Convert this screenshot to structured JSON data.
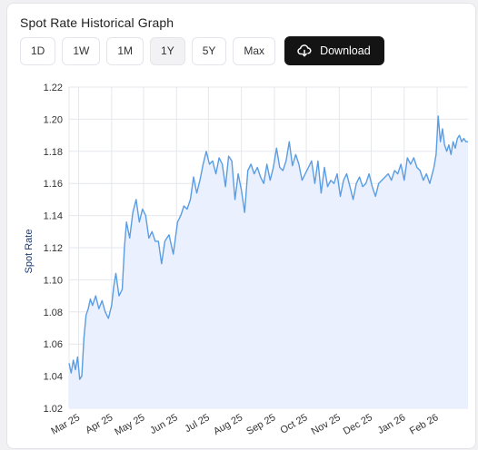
{
  "header": {
    "title": "Spot Rate Historical Graph"
  },
  "toolbar": {
    "ranges": [
      "1D",
      "1W",
      "1M",
      "1Y",
      "5Y",
      "Max"
    ],
    "active_range": "1Y",
    "download_label": "Download"
  },
  "colors": {
    "line": "#5a9de3",
    "fill": "#eaf0fd",
    "grid": "#e6e7ec",
    "button_dark": "#141414"
  },
  "chart_data": {
    "type": "area",
    "title": "",
    "xlabel": "",
    "ylabel": "Spot Rate",
    "ylim": [
      1.02,
      1.22
    ],
    "yticks": [
      "1.22",
      "1.20",
      "1.18",
      "1.16",
      "1.14",
      "1.12",
      "1.10",
      "1.08",
      "1.06",
      "1.04",
      "1.02"
    ],
    "ytick_values": [
      1.22,
      1.2,
      1.18,
      1.16,
      1.14,
      1.12,
      1.1,
      1.08,
      1.06,
      1.04,
      1.02
    ],
    "xticks": [
      "Mar 25",
      "Apr 25",
      "May 25",
      "Jun 25",
      "Jul 25",
      "Aug 25",
      "Sep 25",
      "Oct 25",
      "Nov 25",
      "Dec 25",
      "Jan 26",
      "Feb 26"
    ],
    "xtick_dates": [
      "2025-03-01",
      "2025-04-01",
      "2025-05-01",
      "2025-06-01",
      "2025-07-01",
      "2025-08-01",
      "2025-09-01",
      "2025-10-01",
      "2025-11-01",
      "2025-12-01",
      "2026-01-01",
      "2026-02-01"
    ],
    "xlim": [
      "2025-02-20",
      "2026-03-02"
    ],
    "grid": true,
    "legend": "none",
    "series": [
      {
        "x": [
          "2025-02-20",
          "2025-02-22",
          "2025-02-24",
          "2025-02-26",
          "2025-02-28",
          "2025-03-02",
          "2025-03-04",
          "2025-03-06",
          "2025-03-08",
          "2025-03-10",
          "2025-03-12",
          "2025-03-14",
          "2025-03-17",
          "2025-03-20",
          "2025-03-23",
          "2025-03-26",
          "2025-03-29",
          "2025-04-01",
          "2025-04-03",
          "2025-04-05",
          "2025-04-08",
          "2025-04-11",
          "2025-04-13",
          "2025-04-15",
          "2025-04-18",
          "2025-04-21",
          "2025-04-24",
          "2025-04-27",
          "2025-04-30",
          "2025-05-03",
          "2025-05-06",
          "2025-05-09",
          "2025-05-12",
          "2025-05-15",
          "2025-05-18",
          "2025-05-21",
          "2025-05-25",
          "2025-05-29",
          "2025-06-02",
          "2025-06-05",
          "2025-06-08",
          "2025-06-11",
          "2025-06-14",
          "2025-06-17",
          "2025-06-20",
          "2025-06-23",
          "2025-06-26",
          "2025-06-29",
          "2025-07-02",
          "2025-07-05",
          "2025-07-08",
          "2025-07-11",
          "2025-07-14",
          "2025-07-17",
          "2025-07-20",
          "2025-07-23",
          "2025-07-26",
          "2025-07-29",
          "2025-08-01",
          "2025-08-04",
          "2025-08-07",
          "2025-08-10",
          "2025-08-13",
          "2025-08-16",
          "2025-08-19",
          "2025-08-22",
          "2025-08-25",
          "2025-08-28",
          "2025-08-31",
          "2025-09-03",
          "2025-09-06",
          "2025-09-09",
          "2025-09-12",
          "2025-09-15",
          "2025-09-18",
          "2025-09-21",
          "2025-09-24",
          "2025-09-27",
          "2025-09-30",
          "2025-10-03",
          "2025-10-06",
          "2025-10-09",
          "2025-10-12",
          "2025-10-15",
          "2025-10-18",
          "2025-10-21",
          "2025-10-24",
          "2025-10-27",
          "2025-10-30",
          "2025-11-02",
          "2025-11-05",
          "2025-11-08",
          "2025-11-11",
          "2025-11-14",
          "2025-11-17",
          "2025-11-20",
          "2025-11-23",
          "2025-11-26",
          "2025-11-29",
          "2025-12-02",
          "2025-12-05",
          "2025-12-08",
          "2025-12-11",
          "2025-12-14",
          "2025-12-17",
          "2025-12-20",
          "2025-12-23",
          "2025-12-26",
          "2025-12-29",
          "2026-01-01",
          "2026-01-04",
          "2026-01-07",
          "2026-01-10",
          "2026-01-13",
          "2026-01-16",
          "2026-01-19",
          "2026-01-22",
          "2026-01-25",
          "2026-01-27",
          "2026-01-29",
          "2026-01-31",
          "2026-02-02",
          "2026-02-04",
          "2026-02-06",
          "2026-02-08",
          "2026-02-10",
          "2026-02-12",
          "2026-02-14",
          "2026-02-16",
          "2026-02-18",
          "2026-02-20",
          "2026-02-22",
          "2026-02-24",
          "2026-02-26",
          "2026-02-28",
          "2026-03-02"
        ],
        "y": [
          1.048,
          1.042,
          1.05,
          1.044,
          1.052,
          1.038,
          1.04,
          1.064,
          1.078,
          1.082,
          1.088,
          1.084,
          1.09,
          1.082,
          1.087,
          1.08,
          1.076,
          1.084,
          1.096,
          1.104,
          1.09,
          1.094,
          1.12,
          1.136,
          1.126,
          1.142,
          1.15,
          1.136,
          1.144,
          1.14,
          1.126,
          1.13,
          1.124,
          1.124,
          1.11,
          1.124,
          1.128,
          1.116,
          1.136,
          1.14,
          1.146,
          1.144,
          1.15,
          1.164,
          1.154,
          1.162,
          1.172,
          1.18,
          1.172,
          1.174,
          1.166,
          1.176,
          1.172,
          1.158,
          1.177,
          1.174,
          1.15,
          1.166,
          1.156,
          1.142,
          1.168,
          1.172,
          1.166,
          1.17,
          1.164,
          1.16,
          1.172,
          1.162,
          1.17,
          1.182,
          1.17,
          1.168,
          1.174,
          1.186,
          1.171,
          1.178,
          1.172,
          1.162,
          1.166,
          1.17,
          1.174,
          1.16,
          1.174,
          1.154,
          1.17,
          1.158,
          1.162,
          1.16,
          1.166,
          1.152,
          1.162,
          1.166,
          1.158,
          1.15,
          1.16,
          1.164,
          1.158,
          1.16,
          1.166,
          1.158,
          1.152,
          1.16,
          1.162,
          1.164,
          1.166,
          1.162,
          1.168,
          1.166,
          1.172,
          1.162,
          1.176,
          1.172,
          1.176,
          1.17,
          1.168,
          1.162,
          1.166,
          1.16,
          1.165,
          1.17,
          1.178,
          1.202,
          1.186,
          1.194,
          1.184,
          1.18,
          1.184,
          1.178,
          1.186,
          1.182,
          1.188,
          1.19,
          1.186,
          1.188,
          1.186,
          1.186
        ]
      }
    ]
  }
}
